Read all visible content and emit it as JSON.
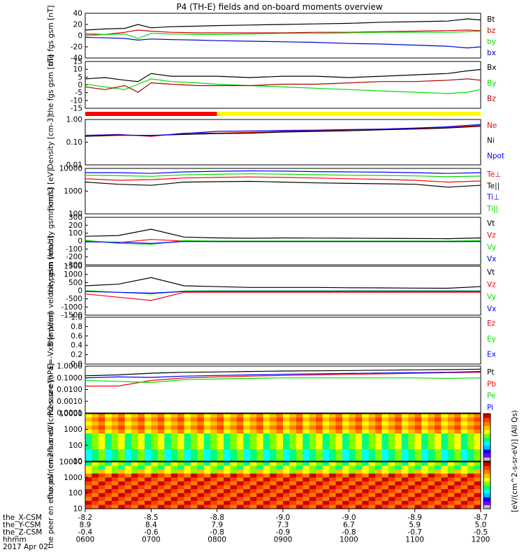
{
  "title": "P4 (TH-E) fields and on-board moments overview",
  "bottom": {
    "row_labels": [
      "the_X-CSM",
      "the_Y-CSM",
      "the_Z-CSM",
      "hhmm",
      "2017 Apr 02"
    ],
    "columns": [
      [
        "-8.2",
        "8.9",
        "-0.4",
        "0600"
      ],
      [
        "-8.5",
        "8.4",
        "-0.6",
        "0700"
      ],
      [
        "-8.8",
        "7.9",
        "-0.8",
        "0800"
      ],
      [
        "-9.0",
        "7.3",
        "-0.9",
        "0900"
      ],
      [
        "-9.0",
        "6.7",
        "-0.8",
        "1000"
      ],
      [
        "-8.9",
        "5.9",
        "-0.7",
        "1100"
      ],
      [
        "-8.7",
        "5.0",
        "-0.5",
        "1200"
      ]
    ]
  },
  "colorbar": {
    "label": "[eV/(cm^2-s-sr-eV)] (All Qs)",
    "colors": [
      "#c0c0c0",
      "#7f00ff",
      "#0000ff",
      "#00bfff",
      "#00ffff",
      "#00ff7f",
      "#7fff00",
      "#ffff00",
      "#ffbf00",
      "#ff7f00",
      "#ff3f00",
      "#cc0000"
    ]
  },
  "chart_data": [
    {
      "id": "fgs-gsm-b",
      "type": "line",
      "ylabel": "the fgs gsm [nT]",
      "ylim": [
        -40,
        40
      ],
      "ticks": [
        "40",
        "20",
        "0",
        "-20",
        "-40"
      ],
      "series": [
        {
          "name": "Bt",
          "color": "#000000",
          "x": [
            6,
            6.3,
            6.6,
            6.8,
            7,
            7.3,
            7.7,
            8,
            8.5,
            9,
            9.5,
            10,
            10.5,
            11,
            11.5,
            11.8,
            12
          ],
          "y": [
            10,
            12,
            13,
            20,
            14,
            16,
            17,
            18,
            19,
            20,
            21,
            22,
            24,
            25,
            26,
            30,
            28
          ]
        },
        {
          "name": "bz",
          "color": "#cc0000",
          "x": [
            6,
            6.3,
            6.6,
            6.8,
            7,
            7.3,
            7.7,
            8,
            8.5,
            9,
            9.5,
            10,
            10.5,
            11,
            11.5,
            11.8,
            12
          ],
          "y": [
            3,
            2,
            6,
            10,
            8,
            6,
            5,
            5,
            5,
            5,
            6,
            6,
            7,
            8,
            9,
            10,
            9
          ]
        },
        {
          "name": "by",
          "color": "#00dd00",
          "x": [
            6,
            6.3,
            6.6,
            6.8,
            7,
            7.3,
            7.7,
            8,
            8.5,
            9,
            9.5,
            10,
            10.5,
            11,
            11.5,
            11.8,
            12
          ],
          "y": [
            0,
            2,
            3,
            -5,
            4,
            3,
            2,
            2,
            3,
            4,
            4,
            5,
            6,
            6,
            6,
            7,
            8
          ]
        },
        {
          "name": "bx",
          "color": "#0000cc",
          "x": [
            6,
            6.3,
            6.6,
            6.8,
            7,
            7.3,
            7.7,
            8,
            8.5,
            9,
            9.5,
            10,
            10.5,
            11,
            11.5,
            11.8,
            12
          ],
          "y": [
            -3,
            -4,
            -5,
            -8,
            -6,
            -7,
            -8,
            -9,
            -10,
            -11,
            -12,
            -14,
            -15,
            -17,
            -19,
            -22,
            -20
          ]
        }
      ]
    },
    {
      "id": "fgs-gsm-b2",
      "type": "line",
      "ylabel": "the fgs gsm [nT]",
      "ylim": [
        -20,
        15
      ],
      "ticks": [
        "15",
        "10",
        "5",
        "0",
        "-5",
        "-10",
        "-15"
      ],
      "series": [
        {
          "name": "Bx",
          "color": "#000000",
          "x": [
            6,
            6.3,
            6.6,
            6.8,
            7,
            7.3,
            7.7,
            8,
            8.5,
            9,
            9.5,
            10,
            10.5,
            11,
            11.5,
            11.8,
            12
          ],
          "y": [
            2,
            3,
            1,
            0,
            6,
            4,
            4,
            4,
            3,
            4,
            4,
            3,
            4,
            5,
            6,
            8,
            9
          ]
        },
        {
          "name": "By",
          "color": "#00dd00",
          "x": [
            6,
            6.3,
            6.6,
            6.8,
            7,
            7.3,
            7.7,
            8,
            8.5,
            9,
            9.5,
            10,
            10.5,
            11,
            11.5,
            11.8,
            12
          ],
          "y": [
            -2,
            -4,
            -6,
            -2,
            2,
            0,
            -1,
            -2,
            -3,
            -4,
            -5,
            -6,
            -7,
            -8,
            -9,
            -8,
            -6
          ]
        },
        {
          "name": "Bz",
          "color": "#aa0000",
          "x": [
            6,
            6.3,
            6.6,
            6.8,
            7,
            7.3,
            7.7,
            8,
            8.5,
            9,
            9.5,
            10,
            10.5,
            11,
            11.5,
            11.8,
            12
          ],
          "y": [
            -4,
            -6,
            -3,
            -8,
            -1,
            -2,
            -3,
            -3,
            -3,
            -2,
            -2,
            -1,
            0,
            0,
            1,
            2,
            1
          ]
        }
      ]
    },
    {
      "id": "density",
      "type": "line",
      "ylabel": "Density [cm-3]",
      "scale": "log",
      "ylim": [
        0.01,
        1
      ],
      "ticks": [
        "1.00",
        "0.10",
        "0.01"
      ],
      "series": [
        {
          "name": "Ne",
          "color": "#ff0000",
          "x": [
            6,
            6.5,
            7,
            7.5,
            8,
            8.5,
            9,
            9.5,
            10,
            10.5,
            11,
            11.5,
            12
          ],
          "y": [
            0.2,
            0.22,
            0.18,
            0.25,
            0.25,
            0.27,
            0.3,
            0.32,
            0.35,
            0.37,
            0.4,
            0.45,
            0.55
          ]
        },
        {
          "name": "Ni",
          "color": "#000000",
          "x": [
            6,
            6.5,
            7,
            7.5,
            8,
            8.5,
            9,
            9.5,
            10,
            10.5,
            11,
            11.5,
            12
          ],
          "y": [
            0.18,
            0.2,
            0.2,
            0.22,
            0.24,
            0.25,
            0.28,
            0.3,
            0.32,
            0.35,
            0.38,
            0.42,
            0.5
          ]
        },
        {
          "name": "Npot",
          "color": "#0000ff",
          "x": [
            6,
            6.5,
            7,
            7.5,
            8,
            8.5,
            9,
            9.5,
            10,
            10.5,
            11,
            11.5,
            12
          ],
          "y": [
            0.2,
            0.21,
            0.19,
            0.24,
            0.3,
            0.31,
            0.33,
            0.34,
            0.36,
            0.38,
            0.42,
            0.48,
            0.6
          ]
        }
      ]
    },
    {
      "id": "mom-t3",
      "type": "line",
      "ylabel": "momt3 [eV]",
      "scale": "log",
      "ylim": [
        100,
        10000
      ],
      "ticks": [
        "10000",
        "1000",
        "100"
      ],
      "series": [
        {
          "name": "Te⊥",
          "color": "#ff0000",
          "x": [
            6,
            6.5,
            7,
            7.5,
            8,
            8.5,
            9,
            9.5,
            10,
            10.5,
            11,
            11.5,
            12
          ],
          "y": [
            3500,
            3000,
            3200,
            3800,
            4000,
            4200,
            4000,
            3800,
            3500,
            3300,
            3000,
            2500,
            2800
          ]
        },
        {
          "name": "Te||",
          "color": "#000000",
          "x": [
            6,
            6.5,
            7,
            7.5,
            8,
            8.5,
            9,
            9.5,
            10,
            10.5,
            11,
            11.5,
            12
          ],
          "y": [
            2500,
            2000,
            1800,
            2500,
            2600,
            2700,
            2500,
            2300,
            2200,
            2100,
            2000,
            1500,
            1800
          ]
        },
        {
          "name": "Ti⊥",
          "color": "#0000ff",
          "x": [
            6,
            6.5,
            7,
            7.5,
            8,
            8.5,
            9,
            9.5,
            10,
            10.5,
            11,
            11.5,
            12
          ],
          "y": [
            6500,
            6500,
            6000,
            7000,
            7500,
            7800,
            7600,
            7200,
            7000,
            6800,
            6500,
            6000,
            6500
          ]
        },
        {
          "name": "Ti||",
          "color": "#00dd00",
          "x": [
            6,
            6.5,
            7,
            7.5,
            8,
            8.5,
            9,
            9.5,
            10,
            10.5,
            11,
            11.5,
            12
          ],
          "y": [
            5000,
            4800,
            4500,
            5200,
            5500,
            5800,
            5600,
            5300,
            5000,
            4900,
            4700,
            4300,
            4600
          ]
        }
      ]
    },
    {
      "id": "peim-velocity",
      "type": "line",
      "ylabel": "the peim velocity gsm [km/s]",
      "ylim": [
        -300,
        300
      ],
      "ticks": [
        "300",
        "200",
        "100",
        "0",
        "-100",
        "-200",
        "-300"
      ],
      "series": [
        {
          "name": "Vt",
          "color": "#000000",
          "x": [
            6,
            6.5,
            7,
            7.5,
            8,
            8.5,
            9,
            9.5,
            10,
            10.5,
            11,
            11.5,
            12
          ],
          "y": [
            60,
            70,
            150,
            50,
            40,
            35,
            40,
            38,
            36,
            34,
            32,
            30,
            40
          ]
        },
        {
          "name": "Vz",
          "color": "#ff0000",
          "x": [
            6,
            6.5,
            7,
            7.5,
            8,
            8.5,
            9,
            9.5,
            10,
            10.5,
            11,
            11.5,
            12
          ],
          "y": [
            0,
            -20,
            20,
            0,
            -5,
            -5,
            -5,
            -5,
            -5,
            -5,
            -5,
            -5,
            0
          ]
        },
        {
          "name": "Vy",
          "color": "#00dd00",
          "x": [
            6,
            6.5,
            7,
            7.5,
            8,
            8.5,
            9,
            9.5,
            10,
            10.5,
            11,
            11.5,
            12
          ],
          "y": [
            10,
            -30,
            -40,
            5,
            0,
            0,
            0,
            0,
            0,
            0,
            0,
            0,
            5
          ]
        },
        {
          "name": "Vx",
          "color": "#0000ff",
          "x": [
            6,
            6.5,
            7,
            7.5,
            8,
            8.5,
            9,
            9.5,
            10,
            10.5,
            11,
            11.5,
            12
          ],
          "y": [
            -10,
            -15,
            -30,
            -5,
            -5,
            -5,
            -5,
            -5,
            -5,
            -5,
            -5,
            -5,
            -5
          ]
        }
      ]
    },
    {
      "id": "peem-velocity",
      "type": "line",
      "ylabel": "the peem velocity gsm [km/s]",
      "ylim": [
        -1500,
        1500
      ],
      "ticks": [
        "1500",
        "1000",
        "500",
        "0",
        "-500",
        "-1000",
        "-1500"
      ],
      "series": [
        {
          "name": "Vt",
          "color": "#000000",
          "x": [
            6,
            6.5,
            7,
            7.5,
            8,
            8.5,
            9,
            9.5,
            10,
            10.5,
            11,
            11.5,
            12
          ],
          "y": [
            300,
            400,
            800,
            300,
            250,
            200,
            200,
            200,
            180,
            170,
            160,
            150,
            250
          ]
        },
        {
          "name": "Vz",
          "color": "#ff0000",
          "x": [
            6,
            6.5,
            7,
            7.5,
            8,
            8.5,
            9,
            9.5,
            10,
            10.5,
            11,
            11.5,
            12
          ],
          "y": [
            -200,
            -400,
            -600,
            -100,
            -100,
            -100,
            -100,
            -100,
            -100,
            -100,
            -100,
            -100,
            -100
          ]
        },
        {
          "name": "Vy",
          "color": "#00dd00",
          "x": [
            6,
            6.5,
            7,
            7.5,
            8,
            8.5,
            9,
            9.5,
            10,
            10.5,
            11,
            11.5,
            12
          ],
          "y": [
            0,
            -100,
            -200,
            -20,
            -10,
            -10,
            -10,
            -10,
            -10,
            -10,
            -10,
            -10,
            -10
          ]
        },
        {
          "name": "Vx",
          "color": "#0000ff",
          "x": [
            6,
            6.5,
            7,
            7.5,
            8,
            8.5,
            9,
            9.5,
            10,
            10.5,
            11,
            11.5,
            12
          ],
          "y": [
            -50,
            -100,
            -150,
            -50,
            -40,
            -40,
            -40,
            -40,
            -40,
            -40,
            -40,
            -40,
            -40
          ]
        }
      ]
    },
    {
      "id": "e-field",
      "type": "line",
      "ylabel": "E=-VxB [mV/m]",
      "ylim": [
        0,
        1
      ],
      "ticks": [
        "1.0",
        "0.8",
        "0.6",
        "0.4",
        "0.2",
        "0.0"
      ],
      "series": [
        {
          "name": "Ez",
          "color": "#ff0000",
          "x": [],
          "y": []
        },
        {
          "name": "Ey",
          "color": "#00dd00",
          "x": [],
          "y": []
        },
        {
          "name": "Ex",
          "color": "#0000ff",
          "x": [],
          "y": []
        }
      ]
    },
    {
      "id": "pressure",
      "type": "line",
      "ylabel": "Pressure [nPa]",
      "scale": "log",
      "ylim": [
        0.0001,
        1
      ],
      "ticks": [
        "1.0000",
        "0.1000",
        "0.0100",
        "0.0010",
        "0.0001"
      ],
      "series": [
        {
          "name": "Pt",
          "color": "#000000",
          "x": [
            6,
            6.5,
            7,
            7.5,
            8,
            8.5,
            9,
            9.5,
            10,
            10.5,
            11,
            11.5,
            12
          ],
          "y": [
            0.15,
            0.18,
            0.25,
            0.3,
            0.32,
            0.35,
            0.38,
            0.4,
            0.42,
            0.45,
            0.48,
            0.5,
            0.55
          ]
        },
        {
          "name": "Pb",
          "color": "#ff0000",
          "x": [
            6,
            6.5,
            7,
            7.5,
            8,
            8.5,
            9,
            9.5,
            10,
            10.5,
            11,
            11.5,
            12
          ],
          "y": [
            0.02,
            0.02,
            0.06,
            0.1,
            0.12,
            0.14,
            0.16,
            0.18,
            0.2,
            0.22,
            0.25,
            0.28,
            0.3
          ]
        },
        {
          "name": "Pe",
          "color": "#00dd00",
          "x": [
            6,
            6.5,
            7,
            7.5,
            8,
            8.5,
            9,
            9.5,
            10,
            10.5,
            11,
            11.5,
            12
          ],
          "y": [
            0.06,
            0.05,
            0.04,
            0.07,
            0.08,
            0.09,
            0.1,
            0.1,
            0.1,
            0.1,
            0.1,
            0.09,
            0.1
          ]
        },
        {
          "name": "Pi",
          "color": "#0000ff",
          "x": [
            6,
            6.5,
            7,
            7.5,
            8,
            8.5,
            9,
            9.5,
            10,
            10.5,
            11,
            11.5,
            12
          ],
          "y": [
            0.1,
            0.12,
            0.11,
            0.14,
            0.16,
            0.18,
            0.2,
            0.22,
            0.24,
            0.26,
            0.28,
            0.3,
            0.35
          ]
        }
      ]
    },
    {
      "id": "peir-spectrogram",
      "type": "heatmap",
      "ylabel": "the peir en eflux eV (cm2-s-sr-eV)",
      "scale": "log",
      "ylim": [
        10,
        10000
      ],
      "ticks": [
        "10000",
        "1000",
        "100",
        "10"
      ]
    },
    {
      "id": "peer-spectrogram",
      "type": "heatmap",
      "ylabel": "the peer en eflux eV (cm2-s-sr-eV)",
      "scale": "log",
      "ylim": [
        10,
        10000
      ],
      "ticks": [
        "10000",
        "1000",
        "100",
        "10"
      ]
    }
  ]
}
